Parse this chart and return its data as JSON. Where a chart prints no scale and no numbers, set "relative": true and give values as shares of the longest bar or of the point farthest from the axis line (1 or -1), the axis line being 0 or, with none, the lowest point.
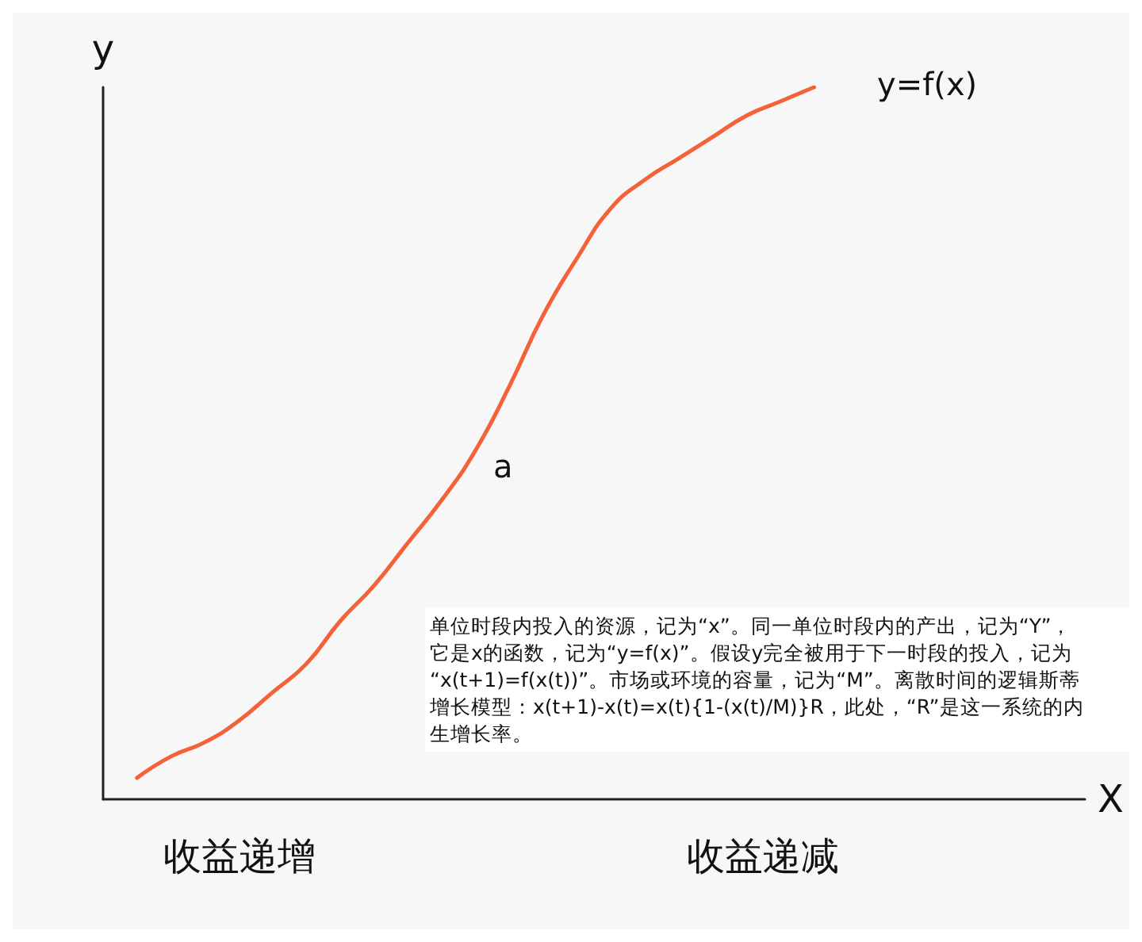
{
  "chart_data": {
    "type": "line",
    "relative": true,
    "xlabel": "X",
    "ylabel": "y",
    "categories": [
      null,
      null,
      null,
      null,
      null,
      null,
      null,
      null,
      null,
      null,
      null,
      null,
      null,
      null,
      null,
      null,
      null,
      null,
      null,
      null,
      null,
      null,
      null,
      null,
      null,
      null,
      null,
      null,
      null,
      null
    ],
    "series": [
      {
        "color": "#f4623a",
        "values": [
          null,
          0.03,
          0.06,
          0.08,
          0.11,
          0.15,
          0.19,
          0.25,
          0.3,
          0.36,
          0.42,
          0.49,
          0.58,
          0.68,
          0.76,
          0.83,
          0.87,
          0.9,
          0.93,
          0.96,
          0.98,
          1.0,
          null,
          null,
          null,
          null,
          null,
          null,
          null,
          null
        ]
      }
    ],
    "annotations": [
      "y=f(x)",
      "a",
      "收益递增",
      "收益递减",
      "单位时段内投入的资源，记为“x”。同一单位时段内的产出，记为“Y”，它是x的函数，记为“y=f(x)”。假设y完全被用于下一时段的投入，记为“x(t+1)=f(x(t))”。市场或环境的容量，记为“M”。离散时间的逻辑斯蒂增长模型：x(t+1)-x(t)=x(t){1-(x(t)/M)}R，此处，“R”是这一系统的内生增长率。"
    ]
  }
}
